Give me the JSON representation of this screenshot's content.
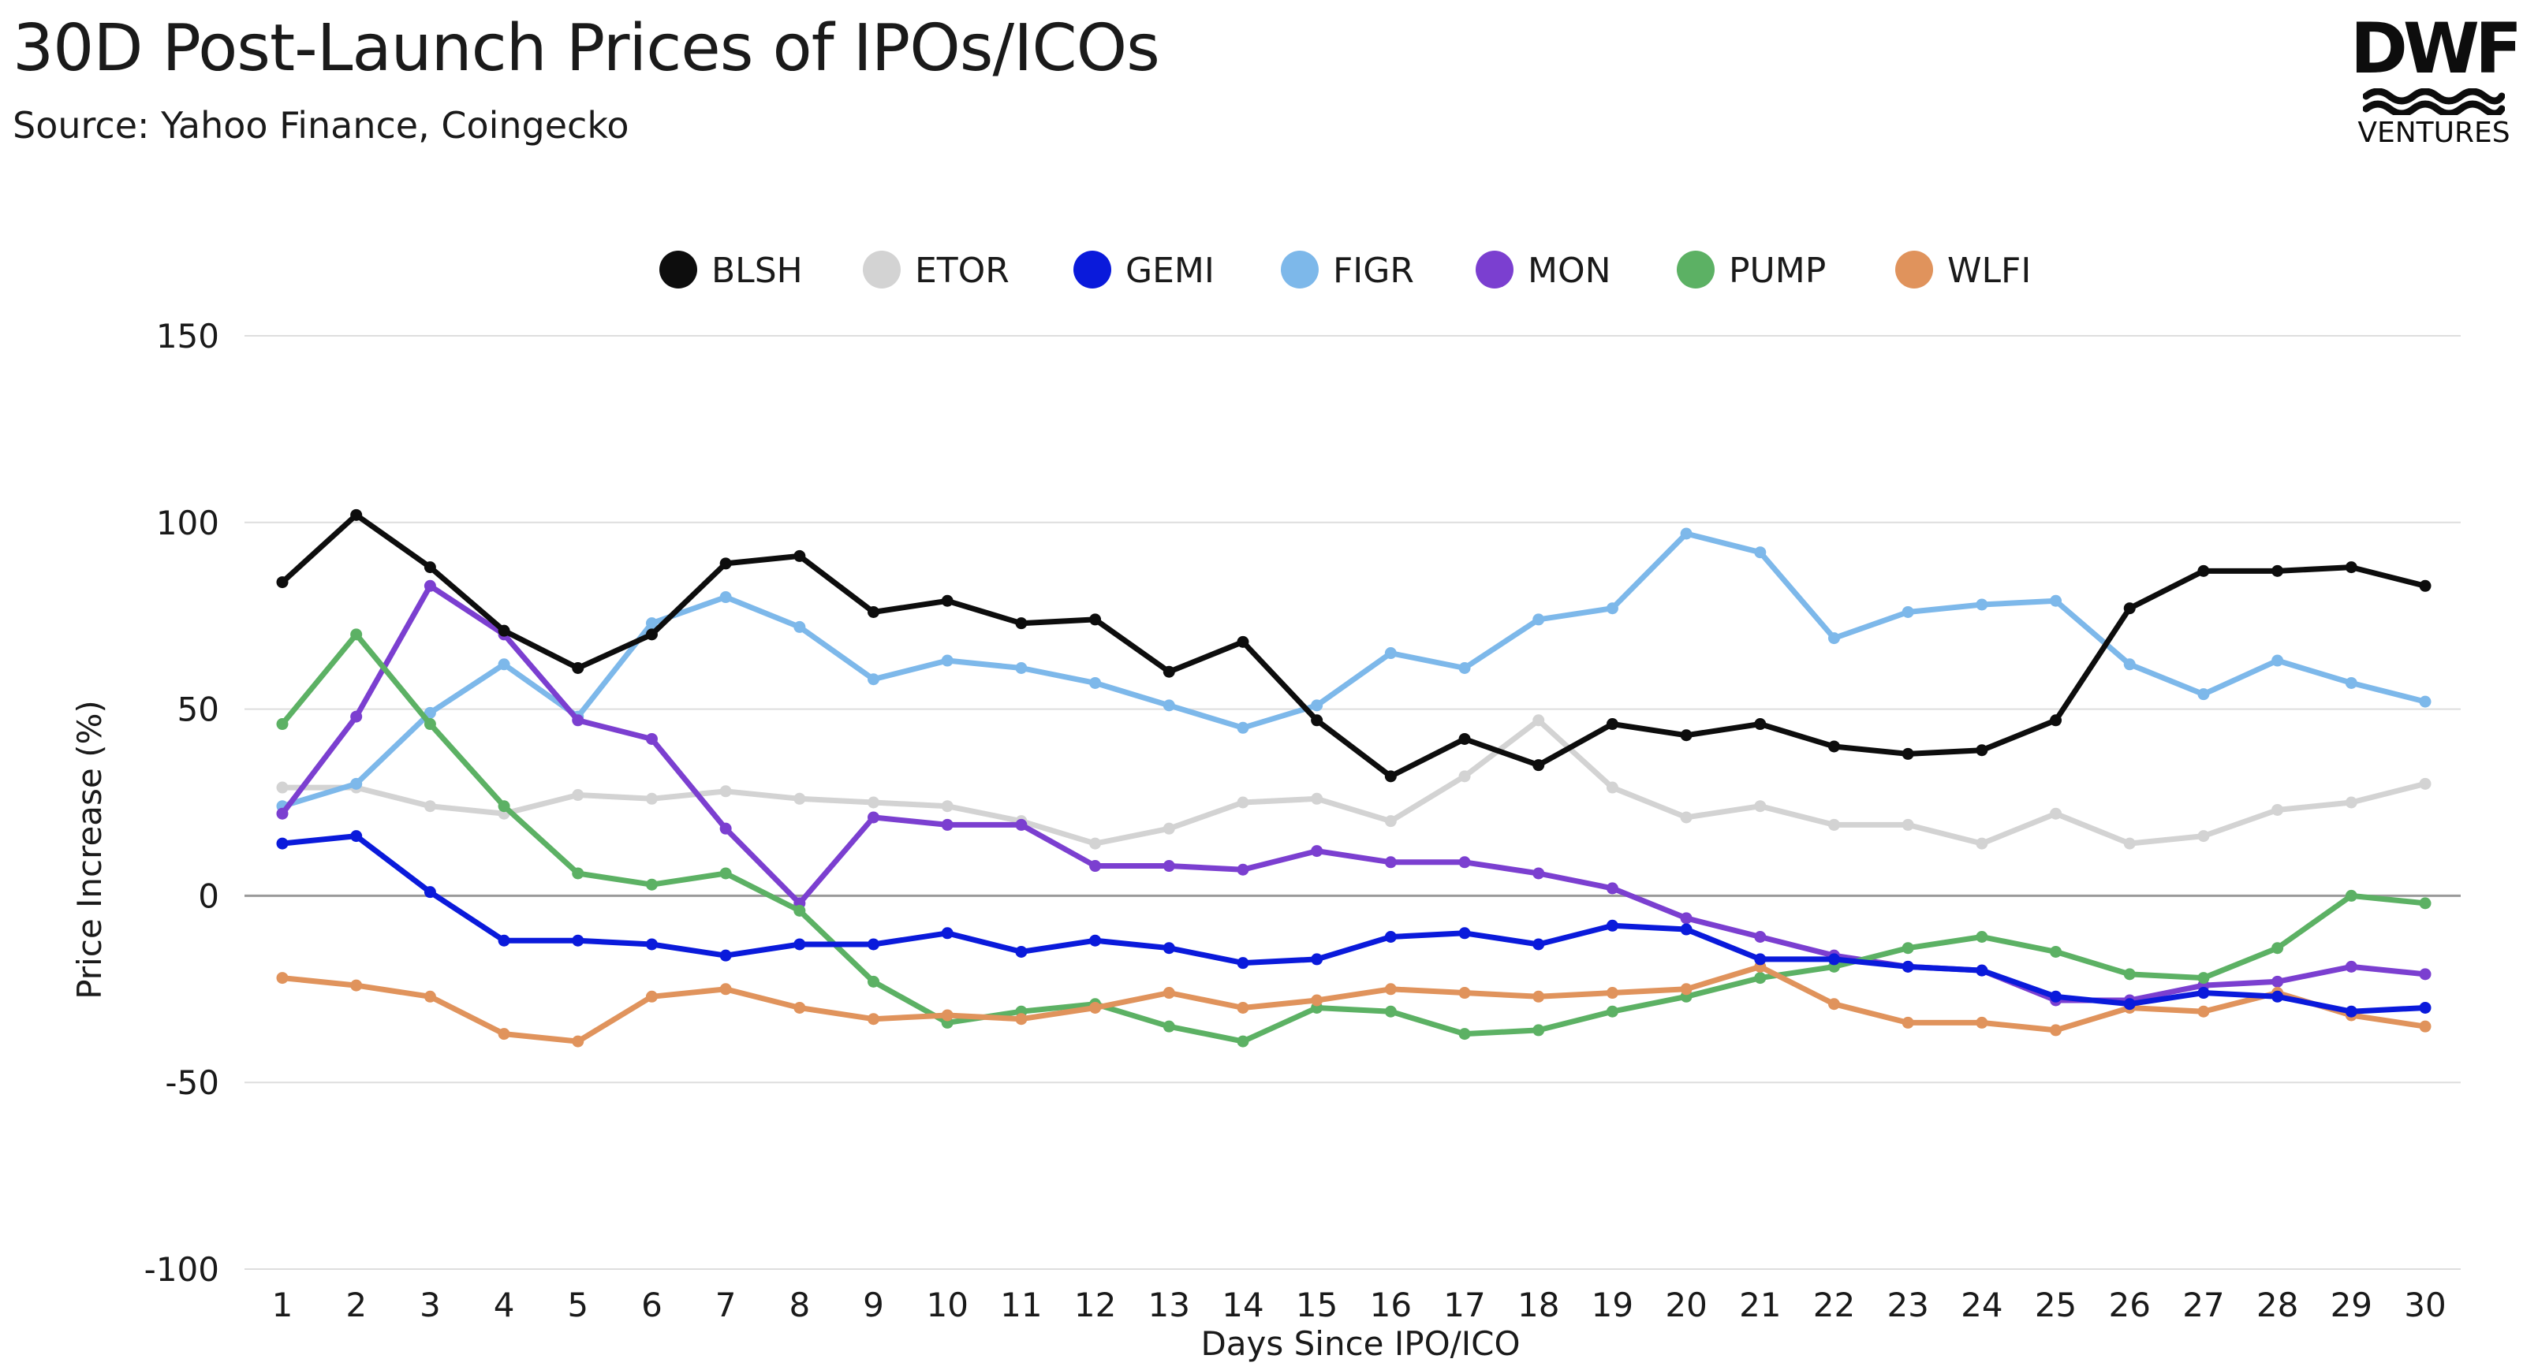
{
  "header": {
    "title": "30D Post-Launch Prices of IPOs/ICOs",
    "subtitle": "Source: Yahoo Finance, Coingecko"
  },
  "logo": {
    "word": "DWF",
    "sub": "VENTURES"
  },
  "chart_data": {
    "type": "line",
    "title": "30D Post-Launch Prices of IPOs/ICOs",
    "xlabel": "Days Since IPO/ICO",
    "ylabel": "Price Increase (%)",
    "ylim": [
      -100,
      150
    ],
    "yticks": [
      150,
      100,
      50,
      0,
      -50,
      -100
    ],
    "x": [
      1,
      2,
      3,
      4,
      5,
      6,
      7,
      8,
      9,
      10,
      11,
      12,
      13,
      14,
      15,
      16,
      17,
      18,
      19,
      20,
      21,
      22,
      23,
      24,
      25,
      26,
      27,
      28,
      29,
      30
    ],
    "grid": true,
    "legend_position": "top",
    "series": [
      {
        "name": "ETOR",
        "color": "#d3d3d3",
        "values": [
          29,
          29,
          24,
          22,
          27,
          26,
          28,
          26,
          25,
          24,
          20,
          14,
          18,
          25,
          26,
          20,
          32,
          47,
          29,
          21,
          24,
          19,
          19,
          14,
          22,
          14,
          16,
          23,
          25,
          30
        ]
      },
      {
        "name": "FIGR",
        "color": "#7db8ea",
        "values": [
          24,
          30,
          49,
          62,
          48,
          73,
          80,
          72,
          58,
          63,
          61,
          57,
          51,
          45,
          51,
          65,
          61,
          74,
          77,
          97,
          92,
          69,
          76,
          78,
          79,
          62,
          54,
          63,
          57,
          52
        ]
      },
      {
        "name": "MON",
        "color": "#7b3fd0",
        "values": [
          22,
          48,
          83,
          70,
          47,
          42,
          18,
          -2,
          21,
          19,
          19,
          8,
          8,
          7,
          12,
          9,
          9,
          6,
          2,
          -6,
          -11,
          -16,
          -19,
          -20,
          -28,
          -28,
          -24,
          -23,
          -19,
          -21
        ]
      },
      {
        "name": "PUMP",
        "color": "#5cb164",
        "values": [
          46,
          70,
          46,
          24,
          6,
          3,
          6,
          -4,
          -23,
          -34,
          -31,
          -29,
          -35,
          -39,
          -30,
          -31,
          -37,
          -36,
          -31,
          -27,
          -22,
          -19,
          -14,
          -11,
          -15,
          -21,
          -22,
          -14,
          0,
          -2
        ]
      },
      {
        "name": "WLFI",
        "color": "#e0935c",
        "values": [
          -22,
          -24,
          -27,
          -37,
          -39,
          -27,
          -25,
          -30,
          -33,
          -32,
          -33,
          -30,
          -26,
          -30,
          -28,
          -25,
          -26,
          -27,
          -26,
          -25,
          -19,
          -29,
          -34,
          -34,
          -36,
          -30,
          -31,
          -26,
          -32,
          -35
        ]
      },
      {
        "name": "GEMI",
        "color": "#0a1adb",
        "values": [
          14,
          16,
          1,
          -12,
          -12,
          -13,
          -16,
          -13,
          -13,
          -10,
          -15,
          -12,
          -14,
          -18,
          -17,
          -11,
          -10,
          -13,
          -8,
          -9,
          -17,
          -17,
          -19,
          -20,
          -27,
          -29,
          -26,
          -27,
          -31,
          -30
        ]
      },
      {
        "name": "BLSH",
        "color": "#0d0d0d",
        "values": [
          84,
          102,
          88,
          71,
          61,
          70,
          89,
          91,
          76,
          79,
          73,
          74,
          60,
          68,
          47,
          32,
          42,
          35,
          46,
          43,
          46,
          40,
          38,
          39,
          47,
          77,
          87,
          87,
          88,
          83
        ]
      }
    ],
    "legend_order": [
      "BLSH",
      "ETOR",
      "GEMI",
      "FIGR",
      "MON",
      "PUMP",
      "WLFI"
    ]
  }
}
